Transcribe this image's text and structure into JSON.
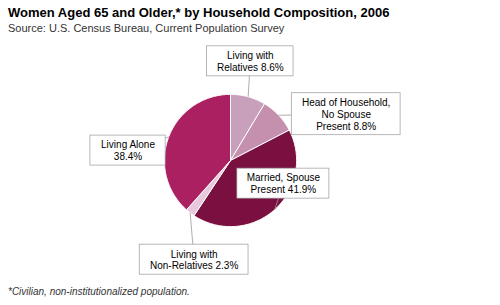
{
  "chart_data": {
    "type": "pie",
    "title": "Women Aged 65 and Older,* by Household Composition, 2006",
    "subtitle": "Source: U.S. Census Bureau, Current Population Survey",
    "annotations": [
      "*Civilian, non-institutionalized population."
    ],
    "categories": [
      "Living with\nRelatives 8.6%",
      "Head of Household,\nNo Spouse\nPresent 8.8%",
      "Married, Spouse\nPresent 41.9%",
      "Living with\nNon-Relatives 2.3%",
      "Living Alone\n38.4%"
    ],
    "values": [
      8.6,
      8.8,
      41.9,
      2.3,
      38.4
    ],
    "colors": [
      "#c9a0bb",
      "#c490ae",
      "#7a1040",
      "#e8c8dc",
      "#aa2060"
    ]
  }
}
